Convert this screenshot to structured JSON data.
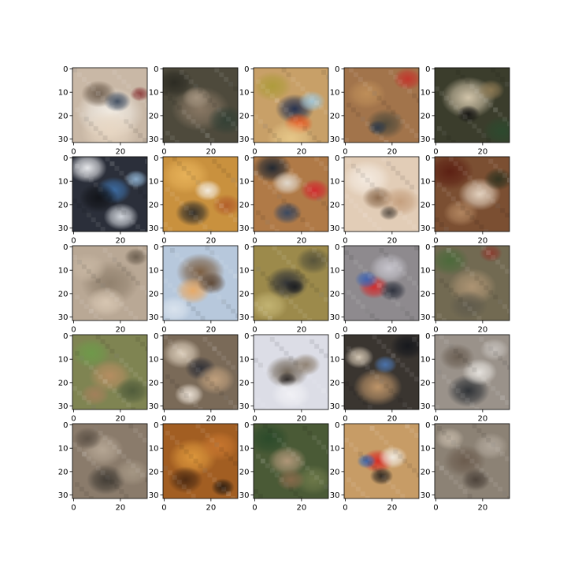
{
  "figure": {
    "rows": 5,
    "cols": 5,
    "image_shape": [
      32,
      32
    ],
    "x_tick_labels": [
      "0",
      "20"
    ],
    "y_tick_labels": [
      "0",
      "10",
      "20",
      "30"
    ],
    "tick_color": "#000000",
    "spine_color": "#000000"
  },
  "images": [
    {
      "id": "r1c1",
      "base": "#c9b8a6",
      "blobs": [
        [
          "#f3efe8",
          0.5,
          0.6,
          0.35
        ],
        [
          "#6b5a4a",
          0.35,
          0.35,
          0.18
        ],
        [
          "#3c4a5e",
          0.6,
          0.45,
          0.14
        ],
        [
          "#8b3a3a",
          0.9,
          0.35,
          0.1
        ],
        [
          "#e8d7c3",
          0.5,
          0.85,
          0.3
        ]
      ]
    },
    {
      "id": "r1c2",
      "base": "#4e4a3c",
      "blobs": [
        [
          "#8c7a66",
          0.5,
          0.55,
          0.3
        ],
        [
          "#2b2a22",
          0.15,
          0.2,
          0.2
        ],
        [
          "#a49480",
          0.45,
          0.4,
          0.15
        ],
        [
          "#324035",
          0.85,
          0.7,
          0.2
        ]
      ]
    },
    {
      "id": "r1c3",
      "base": "#c8a068",
      "blobs": [
        [
          "#ad9b3a",
          0.25,
          0.25,
          0.2
        ],
        [
          "#1f2d4f",
          0.55,
          0.55,
          0.2
        ],
        [
          "#e7531c",
          0.6,
          0.75,
          0.15
        ],
        [
          "#9fc6da",
          0.78,
          0.45,
          0.14
        ],
        [
          "#e8c98a",
          0.5,
          0.95,
          0.25
        ]
      ]
    },
    {
      "id": "r1c4",
      "base": "#a2744b",
      "blobs": [
        [
          "#c4342b",
          0.85,
          0.15,
          0.15
        ],
        [
          "#4f4a3b",
          0.55,
          0.75,
          0.2
        ],
        [
          "#bf8f59",
          0.3,
          0.35,
          0.2
        ],
        [
          "#2e3a4a",
          0.45,
          0.8,
          0.1
        ]
      ]
    },
    {
      "id": "r1c5",
      "base": "#3b3d2c",
      "blobs": [
        [
          "#d9cbb0",
          0.45,
          0.4,
          0.28
        ],
        [
          "#151412",
          0.45,
          0.62,
          0.12
        ],
        [
          "#8e7a54",
          0.75,
          0.3,
          0.14
        ],
        [
          "#2c4a2e",
          0.9,
          0.85,
          0.2
        ]
      ]
    },
    {
      "id": "r2c1",
      "base": "#2b2f3a",
      "blobs": [
        [
          "#f0f1f4",
          0.2,
          0.15,
          0.2
        ],
        [
          "#3d6fa8",
          0.55,
          0.45,
          0.18
        ],
        [
          "#111318",
          0.35,
          0.55,
          0.2
        ],
        [
          "#d9dde3",
          0.65,
          0.8,
          0.18
        ],
        [
          "#8fb2d1",
          0.85,
          0.3,
          0.12
        ]
      ]
    },
    {
      "id": "r2c2",
      "base": "#c9913e",
      "blobs": [
        [
          "#e8b35a",
          0.3,
          0.25,
          0.25
        ],
        [
          "#2b2a29",
          0.4,
          0.75,
          0.18
        ],
        [
          "#f3ede2",
          0.6,
          0.45,
          0.14
        ],
        [
          "#b25d2a",
          0.85,
          0.65,
          0.15
        ]
      ]
    },
    {
      "id": "r2c3",
      "base": "#b07a47",
      "blobs": [
        [
          "#d3282e",
          0.82,
          0.45,
          0.15
        ],
        [
          "#1b2430",
          0.25,
          0.15,
          0.2
        ],
        [
          "#e3ddd3",
          0.45,
          0.35,
          0.16
        ],
        [
          "#344662",
          0.45,
          0.75,
          0.15
        ]
      ]
    },
    {
      "id": "r2c4",
      "base": "#e2cdb7",
      "blobs": [
        [
          "#f5ece2",
          0.3,
          0.3,
          0.25
        ],
        [
          "#8b6a4d",
          0.45,
          0.55,
          0.16
        ],
        [
          "#c49e7c",
          0.75,
          0.6,
          0.2
        ],
        [
          "#5a5046",
          0.6,
          0.75,
          0.1
        ]
      ]
    },
    {
      "id": "r2c5",
      "base": "#7b4f32",
      "blobs": [
        [
          "#5b1e12",
          0.2,
          0.2,
          0.25
        ],
        [
          "#e8d8c6",
          0.6,
          0.5,
          0.22
        ],
        [
          "#b48862",
          0.35,
          0.75,
          0.18
        ],
        [
          "#2f3320",
          0.85,
          0.3,
          0.15
        ]
      ]
    },
    {
      "id": "r3c1",
      "base": "#b9a895",
      "blobs": [
        [
          "#8f7f6c",
          0.5,
          0.5,
          0.3
        ],
        [
          "#d9c8b4",
          0.45,
          0.75,
          0.2
        ],
        [
          "#6b5e4f",
          0.85,
          0.15,
          0.12
        ],
        [
          "#c7b6a2",
          0.2,
          0.3,
          0.2
        ]
      ]
    },
    {
      "id": "r3c2",
      "base": "#b7c8dc",
      "blobs": [
        [
          "#7a5a3b",
          0.5,
          0.35,
          0.25
        ],
        [
          "#e9a861",
          0.4,
          0.6,
          0.18
        ],
        [
          "#5d4633",
          0.65,
          0.5,
          0.15
        ],
        [
          "#dbe4ee",
          0.15,
          0.85,
          0.18
        ]
      ]
    },
    {
      "id": "r3c3",
      "base": "#9c8a4b",
      "blobs": [
        [
          "#2c2f36",
          0.45,
          0.5,
          0.22
        ],
        [
          "#c4b574",
          0.2,
          0.8,
          0.2
        ],
        [
          "#54513a",
          0.8,
          0.2,
          0.18
        ],
        [
          "#1a1c20",
          0.55,
          0.55,
          0.1
        ]
      ]
    },
    {
      "id": "r3c4",
      "base": "#8e8a8e",
      "blobs": [
        [
          "#d32a2c",
          0.4,
          0.55,
          0.16
        ],
        [
          "#3c63b3",
          0.3,
          0.45,
          0.12
        ],
        [
          "#c9c7cf",
          0.6,
          0.3,
          0.2
        ],
        [
          "#2b2f3b",
          0.65,
          0.6,
          0.14
        ]
      ]
    },
    {
      "id": "r3c5",
      "base": "#726a52",
      "blobs": [
        [
          "#4a6a3a",
          0.2,
          0.2,
          0.2
        ],
        [
          "#b09675",
          0.5,
          0.55,
          0.25
        ],
        [
          "#8a3b2e",
          0.75,
          0.1,
          0.12
        ],
        [
          "#5f5a4c",
          0.45,
          0.8,
          0.2
        ]
      ]
    },
    {
      "id": "r4c1",
      "base": "#7f8452",
      "blobs": [
        [
          "#6e9a4a",
          0.25,
          0.25,
          0.2
        ],
        [
          "#b88e62",
          0.5,
          0.55,
          0.22
        ],
        [
          "#4e5a3a",
          0.8,
          0.75,
          0.18
        ],
        [
          "#a4805b",
          0.3,
          0.8,
          0.15
        ]
      ]
    },
    {
      "id": "r4c2",
      "base": "#7a6a58",
      "blobs": [
        [
          "#e0d2bf",
          0.25,
          0.25,
          0.2
        ],
        [
          "#2d2e35",
          0.5,
          0.45,
          0.16
        ],
        [
          "#c3a27e",
          0.7,
          0.6,
          0.2
        ],
        [
          "#f0e6da",
          0.35,
          0.8,
          0.15
        ]
      ]
    },
    {
      "id": "r4c3",
      "base": "#dcdde6",
      "blobs": [
        [
          "#6e6253",
          0.45,
          0.5,
          0.22
        ],
        [
          "#2f2a28",
          0.45,
          0.6,
          0.1
        ],
        [
          "#f1f1f5",
          0.5,
          0.8,
          0.2
        ],
        [
          "#8c7e6e",
          0.7,
          0.4,
          0.15
        ]
      ]
    },
    {
      "id": "r4c4",
      "base": "#3a3530",
      "blobs": [
        [
          "#c59a6c",
          0.45,
          0.7,
          0.25
        ],
        [
          "#4c76b1",
          0.55,
          0.4,
          0.12
        ],
        [
          "#d7c9b5",
          0.2,
          0.3,
          0.15
        ],
        [
          "#15171c",
          0.85,
          0.15,
          0.18
        ]
      ]
    },
    {
      "id": "r4c5",
      "base": "#9a928a",
      "blobs": [
        [
          "#2a2e33",
          0.45,
          0.75,
          0.22
        ],
        [
          "#e7e4df",
          0.6,
          0.5,
          0.18
        ],
        [
          "#6a5e52",
          0.3,
          0.3,
          0.18
        ],
        [
          "#c6c1bc",
          0.8,
          0.2,
          0.15
        ]
      ]
    },
    {
      "id": "r5c1",
      "base": "#8a7b6b",
      "blobs": [
        [
          "#b7a896",
          0.4,
          0.35,
          0.22
        ],
        [
          "#3f3a33",
          0.45,
          0.75,
          0.2
        ],
        [
          "#a69885",
          0.8,
          0.65,
          0.18
        ],
        [
          "#5d5247",
          0.2,
          0.2,
          0.15
        ]
      ]
    },
    {
      "id": "r5c2",
      "base": "#a25e22",
      "blobs": [
        [
          "#e09a3d",
          0.4,
          0.45,
          0.25
        ],
        [
          "#4c2a12",
          0.3,
          0.75,
          0.18
        ],
        [
          "#c9772f",
          0.75,
          0.3,
          0.2
        ],
        [
          "#2b1c10",
          0.8,
          0.85,
          0.12
        ]
      ]
    },
    {
      "id": "r5c3",
      "base": "#4a5a36",
      "blobs": [
        [
          "#2a4a2a",
          0.2,
          0.2,
          0.22
        ],
        [
          "#b59a7c",
          0.45,
          0.5,
          0.2
        ],
        [
          "#6f7a4a",
          0.8,
          0.75,
          0.2
        ],
        [
          "#8a6b4c",
          0.5,
          0.75,
          0.15
        ]
      ]
    },
    {
      "id": "r5c4",
      "base": "#c79c66",
      "blobs": [
        [
          "#d72a24",
          0.45,
          0.5,
          0.16
        ],
        [
          "#3b6bb3",
          0.3,
          0.5,
          0.1
        ],
        [
          "#f1ece4",
          0.65,
          0.45,
          0.15
        ],
        [
          "#2a2420",
          0.5,
          0.7,
          0.12
        ]
      ]
    },
    {
      "id": "r5c5",
      "base": "#8c8275",
      "blobs": [
        [
          "#6a5a4c",
          0.4,
          0.5,
          0.22
        ],
        [
          "#b3a99d",
          0.75,
          0.3,
          0.18
        ],
        [
          "#4a4038",
          0.55,
          0.75,
          0.15
        ],
        [
          "#c4b8a8",
          0.2,
          0.2,
          0.15
        ]
      ]
    }
  ]
}
